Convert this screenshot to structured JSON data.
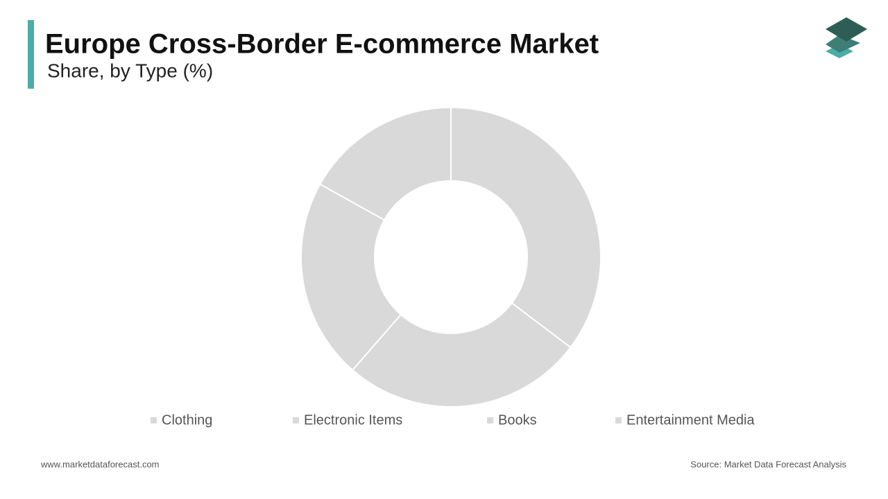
{
  "chart_data": {
    "type": "donut",
    "title": "Europe Cross-Border E-commerce Market",
    "subtitle": "Share, by Type (%)",
    "categories": [
      "Clothing",
      "Electronic Items",
      "Books",
      "Entertainment Media"
    ],
    "values": [
      35.3,
      26.1,
      21.7,
      16.9
    ],
    "colors": [
      "#d9d9d9",
      "#d9d9d9",
      "#d9d9d9",
      "#d9d9d9"
    ],
    "source": "Source: Market Data Forecast Analysis"
  },
  "footer": {
    "website": "www.marketdataforecast.com"
  }
}
